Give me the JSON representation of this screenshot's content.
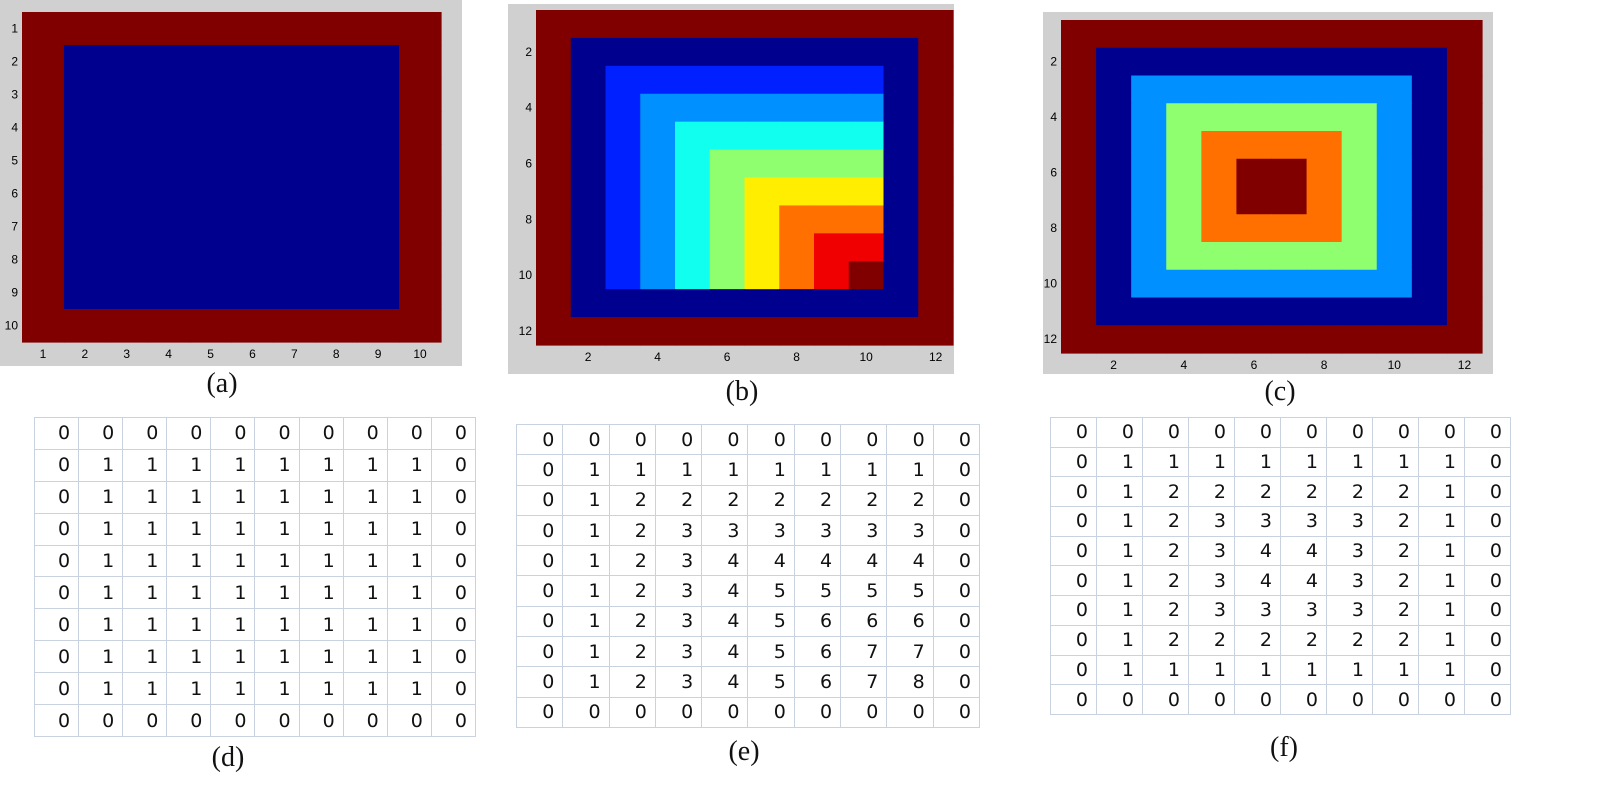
{
  "palette": {
    "border": "#800000",
    "levels": [
      "#800000",
      "#00008f",
      "#0020ff",
      "#0090ff",
      "#10ffef",
      "#8fff70",
      "#ffee00",
      "#ff7000",
      "#f00000",
      "#800000"
    ],
    "panel_bg": "#d0d0d0"
  },
  "captions": {
    "a": "(a)",
    "b": "(b)",
    "c": "(c)",
    "d": "(d)",
    "e": "(e)",
    "f": "(f)"
  },
  "chart_data": [
    {
      "type": "heatmap",
      "id": "a",
      "xticks": [
        "1",
        "2",
        "3",
        "4",
        "5",
        "6",
        "7",
        "8",
        "9",
        "10"
      ],
      "yticks": [
        "1",
        "2",
        "3",
        "4",
        "5",
        "6",
        "7",
        "8",
        "9",
        "10"
      ],
      "xlim": [
        0.5,
        10.5
      ],
      "ylim": [
        0.5,
        10.5
      ],
      "matrix": [
        [
          0,
          0,
          0,
          0,
          0,
          0,
          0,
          0,
          0,
          0
        ],
        [
          0,
          1,
          1,
          1,
          1,
          1,
          1,
          1,
          1,
          0
        ],
        [
          0,
          1,
          1,
          1,
          1,
          1,
          1,
          1,
          1,
          0
        ],
        [
          0,
          1,
          1,
          1,
          1,
          1,
          1,
          1,
          1,
          0
        ],
        [
          0,
          1,
          1,
          1,
          1,
          1,
          1,
          1,
          1,
          0
        ],
        [
          0,
          1,
          1,
          1,
          1,
          1,
          1,
          1,
          1,
          0
        ],
        [
          0,
          1,
          1,
          1,
          1,
          1,
          1,
          1,
          1,
          0
        ],
        [
          0,
          1,
          1,
          1,
          1,
          1,
          1,
          1,
          1,
          0
        ],
        [
          0,
          1,
          1,
          1,
          1,
          1,
          1,
          1,
          1,
          0
        ],
        [
          0,
          0,
          0,
          0,
          0,
          0,
          0,
          0,
          0,
          0
        ]
      ]
    },
    {
      "type": "heatmap",
      "id": "b",
      "xticks": [
        "2",
        "4",
        "6",
        "8",
        "10",
        "12"
      ],
      "yticks": [
        "2",
        "4",
        "6",
        "8",
        "10",
        "12"
      ],
      "xlim": [
        0.5,
        12.5
      ],
      "ylim": [
        0.5,
        12.5
      ],
      "matrix": [
        [
          0,
          0,
          0,
          0,
          0,
          0,
          0,
          0,
          0,
          0,
          0,
          0
        ],
        [
          0,
          1,
          1,
          1,
          1,
          1,
          1,
          1,
          1,
          1,
          1,
          0
        ],
        [
          0,
          1,
          2,
          2,
          2,
          2,
          2,
          2,
          2,
          2,
          1,
          0
        ],
        [
          0,
          1,
          2,
          3,
          3,
          3,
          3,
          3,
          3,
          3,
          1,
          0
        ],
        [
          0,
          1,
          2,
          3,
          4,
          4,
          4,
          4,
          4,
          4,
          1,
          0
        ],
        [
          0,
          1,
          2,
          3,
          4,
          5,
          5,
          5,
          5,
          5,
          1,
          0
        ],
        [
          0,
          1,
          2,
          3,
          4,
          5,
          6,
          6,
          6,
          6,
          1,
          0
        ],
        [
          0,
          1,
          2,
          3,
          4,
          5,
          6,
          7,
          7,
          7,
          1,
          0
        ],
        [
          0,
          1,
          2,
          3,
          4,
          5,
          6,
          7,
          8,
          8,
          1,
          0
        ],
        [
          0,
          1,
          2,
          3,
          4,
          5,
          6,
          7,
          8,
          9,
          1,
          0
        ],
        [
          0,
          1,
          1,
          1,
          1,
          1,
          1,
          1,
          1,
          1,
          1,
          0
        ],
        [
          0,
          0,
          0,
          0,
          0,
          0,
          0,
          0,
          0,
          0,
          0,
          0
        ]
      ]
    },
    {
      "type": "heatmap",
      "id": "c",
      "xticks": [
        "2",
        "4",
        "6",
        "8",
        "10",
        "12"
      ],
      "yticks": [
        "2",
        "4",
        "6",
        "8",
        "10",
        "12"
      ],
      "xlim": [
        0.5,
        12.5
      ],
      "ylim": [
        0.5,
        12.5
      ],
      "matrix": [
        [
          0,
          0,
          0,
          0,
          0,
          0,
          0,
          0,
          0,
          0,
          0,
          0
        ],
        [
          0,
          1,
          1,
          1,
          1,
          1,
          1,
          1,
          1,
          1,
          1,
          0
        ],
        [
          0,
          1,
          3,
          3,
          3,
          3,
          3,
          3,
          3,
          3,
          1,
          0
        ],
        [
          0,
          1,
          3,
          5,
          5,
          5,
          5,
          5,
          5,
          3,
          1,
          0
        ],
        [
          0,
          1,
          3,
          5,
          7,
          7,
          7,
          7,
          5,
          3,
          1,
          0
        ],
        [
          0,
          1,
          3,
          5,
          7,
          9,
          9,
          7,
          5,
          3,
          1,
          0
        ],
        [
          0,
          1,
          3,
          5,
          7,
          9,
          9,
          7,
          5,
          3,
          1,
          0
        ],
        [
          0,
          1,
          3,
          5,
          7,
          7,
          7,
          7,
          5,
          3,
          1,
          0
        ],
        [
          0,
          1,
          3,
          5,
          5,
          5,
          5,
          5,
          5,
          3,
          1,
          0
        ],
        [
          0,
          1,
          3,
          3,
          3,
          3,
          3,
          3,
          3,
          3,
          1,
          0
        ],
        [
          0,
          1,
          1,
          1,
          1,
          1,
          1,
          1,
          1,
          1,
          1,
          0
        ],
        [
          0,
          0,
          0,
          0,
          0,
          0,
          0,
          0,
          0,
          0,
          0,
          0
        ]
      ]
    },
    {
      "type": "table",
      "id": "d",
      "rows": [
        [
          "0",
          "0",
          "0",
          "0",
          "0",
          "0",
          "0",
          "0",
          "0",
          "0"
        ],
        [
          "0",
          "1",
          "1",
          "1",
          "1",
          "1",
          "1",
          "1",
          "1",
          "0"
        ],
        [
          "0",
          "1",
          "1",
          "1",
          "1",
          "1",
          "1",
          "1",
          "1",
          "0"
        ],
        [
          "0",
          "1",
          "1",
          "1",
          "1",
          "1",
          "1",
          "1",
          "1",
          "0"
        ],
        [
          "0",
          "1",
          "1",
          "1",
          "1",
          "1",
          "1",
          "1",
          "1",
          "0"
        ],
        [
          "0",
          "1",
          "1",
          "1",
          "1",
          "1",
          "1",
          "1",
          "1",
          "0"
        ],
        [
          "0",
          "1",
          "1",
          "1",
          "1",
          "1",
          "1",
          "1",
          "1",
          "0"
        ],
        [
          "0",
          "1",
          "1",
          "1",
          "1",
          "1",
          "1",
          "1",
          "1",
          "0"
        ],
        [
          "0",
          "1",
          "1",
          "1",
          "1",
          "1",
          "1",
          "1",
          "1",
          "0"
        ],
        [
          "0",
          "0",
          "0",
          "0",
          "0",
          "0",
          "0",
          "0",
          "0",
          "0"
        ]
      ]
    },
    {
      "type": "table",
      "id": "e",
      "rows": [
        [
          "0",
          "0",
          "0",
          "0",
          "0",
          "0",
          "0",
          "0",
          "0",
          "0"
        ],
        [
          "0",
          "1",
          "1",
          "1",
          "1",
          "1",
          "1",
          "1",
          "1",
          "0"
        ],
        [
          "0",
          "1",
          "2",
          "2",
          "2",
          "2",
          "2",
          "2",
          "2",
          "0"
        ],
        [
          "0",
          "1",
          "2",
          "3",
          "3",
          "3",
          "3",
          "3",
          "3",
          "0"
        ],
        [
          "0",
          "1",
          "2",
          "3",
          "4",
          "4",
          "4",
          "4",
          "4",
          "0"
        ],
        [
          "0",
          "1",
          "2",
          "3",
          "4",
          "5",
          "5",
          "5",
          "5",
          "0"
        ],
        [
          "0",
          "1",
          "2",
          "3",
          "4",
          "5",
          "6",
          "6",
          "6",
          "0"
        ],
        [
          "0",
          "1",
          "2",
          "3",
          "4",
          "5",
          "6",
          "7",
          "7",
          "0"
        ],
        [
          "0",
          "1",
          "2",
          "3",
          "4",
          "5",
          "6",
          "7",
          "8",
          "0"
        ],
        [
          "0",
          "0",
          "0",
          "0",
          "0",
          "0",
          "0",
          "0",
          "0",
          "0"
        ]
      ]
    },
    {
      "type": "table",
      "id": "f",
      "rows": [
        [
          "0",
          "0",
          "0",
          "0",
          "0",
          "0",
          "0",
          "0",
          "0",
          "0"
        ],
        [
          "0",
          "1",
          "1",
          "1",
          "1",
          "1",
          "1",
          "1",
          "1",
          "0"
        ],
        [
          "0",
          "1",
          "2",
          "2",
          "2",
          "2",
          "2",
          "2",
          "1",
          "0"
        ],
        [
          "0",
          "1",
          "2",
          "3",
          "3",
          "3",
          "3",
          "2",
          "1",
          "0"
        ],
        [
          "0",
          "1",
          "2",
          "3",
          "4",
          "4",
          "3",
          "2",
          "1",
          "0"
        ],
        [
          "0",
          "1",
          "2",
          "3",
          "4",
          "4",
          "3",
          "2",
          "1",
          "0"
        ],
        [
          "0",
          "1",
          "2",
          "3",
          "3",
          "3",
          "3",
          "2",
          "1",
          "0"
        ],
        [
          "0",
          "1",
          "2",
          "2",
          "2",
          "2",
          "2",
          "2",
          "1",
          "0"
        ],
        [
          "0",
          "1",
          "1",
          "1",
          "1",
          "1",
          "1",
          "1",
          "1",
          "0"
        ],
        [
          "0",
          "0",
          "0",
          "0",
          "0",
          "0",
          "0",
          "0",
          "0",
          "0"
        ]
      ]
    }
  ]
}
